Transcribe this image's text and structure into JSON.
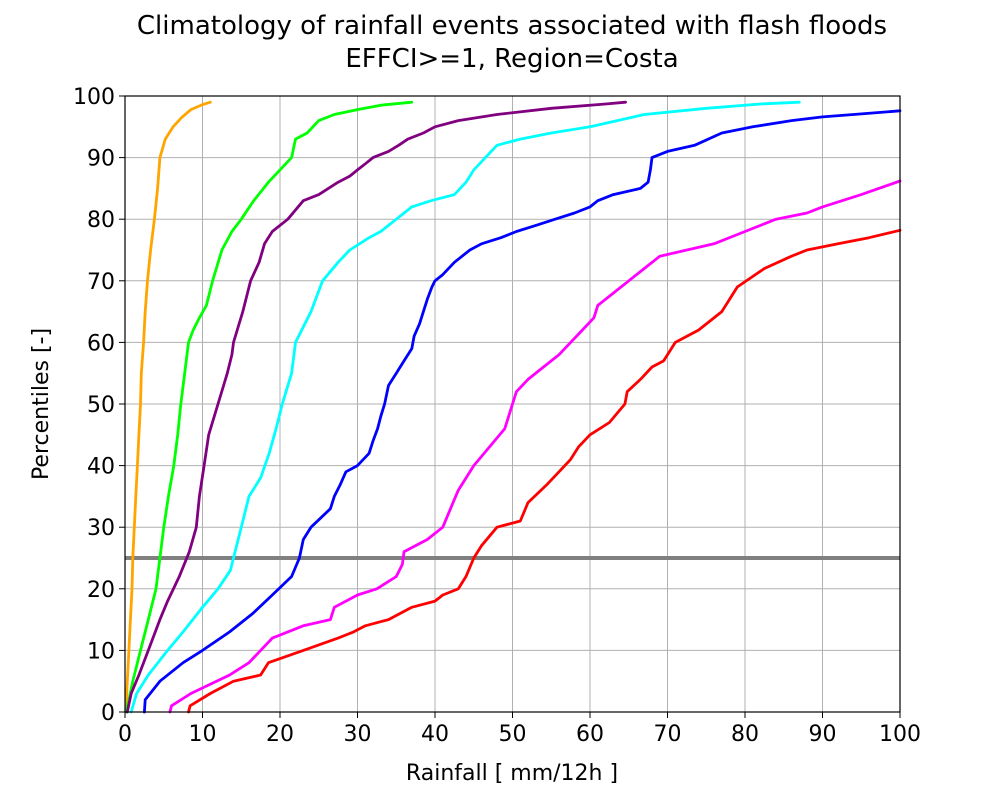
{
  "chart_data": {
    "type": "line",
    "title": "Climatology of rainfall events associated with flash floods",
    "subtitle": "EFFCI>=1, Region=Costa",
    "xlabel": "Rainfall [ mm/12h ]",
    "ylabel": "Percentiles [-]",
    "xlim": [
      0,
      100
    ],
    "ylim": [
      0,
      100
    ],
    "xticks": [
      0,
      10,
      20,
      30,
      40,
      50,
      60,
      70,
      80,
      90,
      100
    ],
    "yticks": [
      0,
      10,
      20,
      30,
      40,
      50,
      60,
      70,
      80,
      90,
      100
    ],
    "grid": true,
    "reference_line": {
      "y": 25,
      "color": "#808080"
    },
    "series": [
      {
        "color": "#FFA500",
        "x": [
          0.1,
          0.3,
          0.5,
          0.7,
          0.9,
          1.0,
          1.2,
          1.4,
          1.6,
          1.8,
          2.0,
          2.1,
          2.4,
          2.6,
          2.9,
          3.3,
          3.8,
          4.2,
          4.5,
          5.2,
          6.2,
          7.3,
          8.5,
          10.0,
          11.0
        ],
        "y": [
          0,
          5,
          10,
          15,
          20,
          25,
          30,
          35,
          40,
          45,
          50,
          55,
          60,
          65,
          70,
          75,
          80,
          85,
          90,
          93,
          95,
          96.5,
          97.8,
          98.6,
          99
        ]
      },
      {
        "color": "#00FF00",
        "x": [
          0.1,
          0.5,
          1.0,
          2.0,
          3.0,
          4.0,
          4.5,
          5.0,
          5.6,
          6.3,
          6.8,
          7.2,
          7.7,
          8.2,
          8.8,
          9.6,
          10.5,
          11.3,
          12.5,
          13.8,
          15.0,
          16.6,
          18.5,
          20.0,
          21.5,
          22.0,
          23.5,
          25.0,
          27.0,
          30.0,
          33.0,
          37.0
        ],
        "y": [
          0,
          2,
          5,
          10,
          15,
          20,
          25,
          30,
          35,
          40,
          45,
          50,
          55,
          60,
          62,
          64,
          66,
          70,
          75,
          78,
          80,
          83,
          86,
          88,
          90,
          93,
          94,
          96,
          97,
          97.8,
          98.5,
          99
        ]
      },
      {
        "color": "#800080",
        "x": [
          0.3,
          0.8,
          1.8,
          3.0,
          4.5,
          5.5,
          7.0,
          8.3,
          9.2,
          9.6,
          10.2,
          10.8,
          12.0,
          13.2,
          13.8,
          14.0,
          15.2,
          16.2,
          17.3,
          18.0,
          19.0,
          21.0,
          23.0,
          25.0,
          27.5,
          29.0,
          30.0,
          31.0,
          32.0,
          34.0,
          35.3,
          36.5,
          38.5,
          40.0,
          43.0,
          48.0,
          55.0,
          62.0,
          64.6
        ],
        "y": [
          0,
          3,
          6,
          10,
          15,
          18,
          22,
          26,
          30,
          35,
          40,
          45,
          50,
          55,
          58,
          60,
          65,
          70,
          73,
          76,
          78,
          80,
          83,
          84,
          86,
          87,
          88,
          89,
          90,
          91,
          92,
          93,
          94,
          95,
          96,
          97,
          98,
          98.7,
          99
        ]
      },
      {
        "color": "#00FFFF",
        "x": [
          0.8,
          1.5,
          3.0,
          5.5,
          7.5,
          10.0,
          12.0,
          13.6,
          14.0,
          15.0,
          16.0,
          17.5,
          18.6,
          19.5,
          20.3,
          21.5,
          22.0,
          24.0,
          25.5,
          27.5,
          29.0,
          31.5,
          33.0,
          35.0,
          37.0,
          39.5,
          42.5,
          44.0,
          45.0,
          46.5,
          48.0,
          51.0,
          55.0,
          60.0,
          67.0,
          75.0,
          82.0,
          87.0
        ],
        "y": [
          0,
          3,
          6,
          10,
          13,
          17,
          20,
          23,
          25,
          30,
          35,
          38,
          42,
          46,
          50,
          55,
          60,
          65,
          70,
          73,
          75,
          77,
          78,
          80,
          82,
          83,
          84,
          86,
          88,
          90,
          92,
          93,
          94,
          95,
          97,
          98,
          98.7,
          99
        ]
      },
      {
        "color": "#0000FF",
        "x": [
          2.5,
          2.6,
          4.5,
          7.5,
          10.0,
          13.5,
          16.5,
          19.0,
          21.5,
          22.5,
          23.0,
          24.0,
          26.5,
          27.0,
          27.8,
          28.5,
          30.0,
          31.5,
          32.0,
          32.6,
          33.0,
          33.5,
          34.0,
          35.0,
          36.0,
          37.0,
          37.3,
          38.0,
          38.5,
          39.0,
          39.6,
          40.0,
          41.0,
          42.5,
          44.5,
          46.0,
          48.5,
          50.5,
          53.0,
          55.5,
          58.0,
          60.0,
          61.0,
          63.0,
          66.5,
          67.5,
          67.8,
          68.0,
          70.0,
          73.5,
          77.0,
          81.0,
          86.0,
          90.0,
          94.0,
          100.0
        ],
        "y": [
          0,
          2,
          5,
          8,
          10,
          13,
          16,
          19,
          22,
          25,
          28,
          30,
          33,
          35,
          37,
          39,
          40,
          42,
          44,
          46,
          48,
          50,
          53,
          55,
          57,
          59,
          61,
          63,
          65,
          67,
          69,
          70,
          71,
          73,
          75,
          76,
          77,
          78,
          79,
          80,
          81,
          82,
          83,
          84,
          85,
          86,
          88,
          90,
          91,
          92,
          94,
          95,
          96,
          96.6,
          97,
          97.6
        ]
      },
      {
        "color": "#FF00FF",
        "x": [
          5.8,
          6.0,
          8.5,
          13.5,
          16.0,
          17.5,
          19.0,
          23.0,
          26.5,
          27.0,
          30.0,
          32.5,
          35.0,
          35.8,
          36.0,
          39.0,
          41.0,
          42.0,
          43.0,
          45.0,
          47.0,
          49.0,
          50.0,
          50.5,
          52.0,
          54.0,
          56.0,
          57.5,
          59.0,
          60.5,
          61.0,
          62.0,
          63.0,
          65.0,
          67.0,
          69.0,
          72.5,
          76.0,
          80.0,
          84.0,
          88.0,
          90.0,
          95.0,
          100.0
        ],
        "y": [
          0,
          1,
          3,
          6,
          8,
          10,
          12,
          14,
          15,
          17,
          19,
          20,
          22,
          24,
          26,
          28,
          30,
          33,
          36,
          40,
          43,
          46,
          50,
          52,
          54,
          56,
          58,
          60,
          62,
          64,
          66,
          67,
          68,
          70,
          72,
          74,
          75,
          76,
          78,
          80,
          81,
          82,
          84,
          86.2
        ]
      },
      {
        "color": "#FF0000",
        "x": [
          8.2,
          8.4,
          11.0,
          14.0,
          17.5,
          18.5,
          23.0,
          27.5,
          29.5,
          31.0,
          34.0,
          37.0,
          40.0,
          41.0,
          43.0,
          44.0,
          45.0,
          46.0,
          48.0,
          51.0,
          52.0,
          54.5,
          56.0,
          57.5,
          58.5,
          60.0,
          62.5,
          64.5,
          64.8,
          66.5,
          68.0,
          69.5,
          71.0,
          74.0,
          77.0,
          79.0,
          82.5,
          86.0,
          88.0,
          92.0,
          96.0,
          100.0
        ],
        "y": [
          0,
          1,
          3,
          5,
          6,
          8,
          10,
          12,
          13,
          14,
          15,
          17,
          18,
          19,
          20,
          22,
          25,
          27,
          30,
          31,
          34,
          37,
          39,
          41,
          43,
          45,
          47,
          50,
          52,
          54,
          56,
          57,
          60,
          62,
          65,
          69,
          72,
          74,
          75,
          76,
          77,
          78.2
        ]
      }
    ]
  }
}
